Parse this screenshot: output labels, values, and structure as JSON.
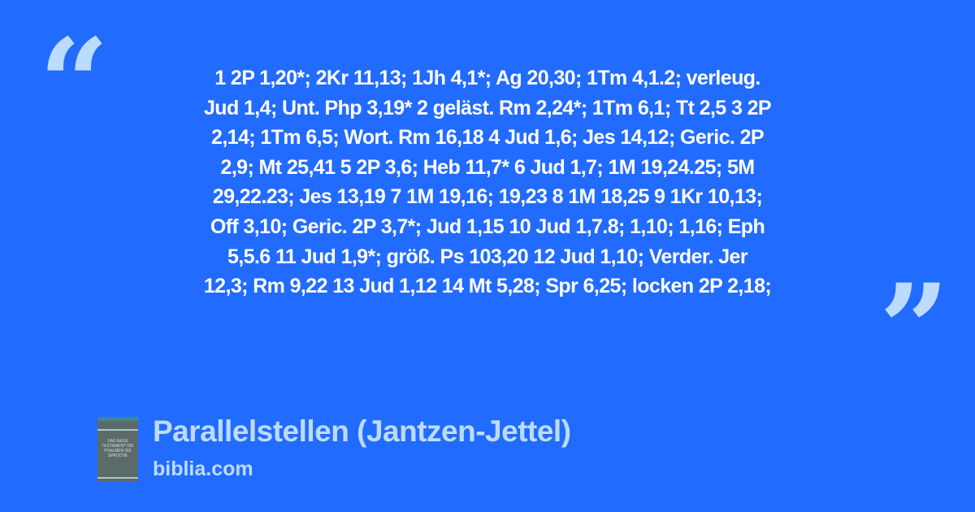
{
  "quote": {
    "lines": [
      "1 2P 1,20*; 2Kr 11,13; 1Jh 4,1*; Ag 20,30; 1Tm 4,1.2; verleug.",
      "Jud 1,4; Unt. Php 3,19* 2 geläst. Rm 2,24*; 1Tm 6,1; Tt 2,5 3 2P",
      "2,14; 1Tm 6,5; Wort. Rm 16,18 4 Jud 1,6; Jes 14,12; Geric. 2P",
      "2,9; Mt 25,41 5 2P 3,6; Heb 11,7* 6 Jud 1,7; 1M 19,24.25; 5M",
      "29,22.23; Jes 13,19 7 1M 19,16; 19,23 8 1M 18,25 9 1Kr 10,13;",
      "Off 3,10; Geric. 2P 3,7*; Jud 1,15 10 Jud 1,7.8; 1,10; 1,16; Eph",
      "5,5.6 11 Jud 1,9*; größ. Ps 103,20 12 Jud 1,10; Verder. Jer",
      "12,3; Rm 9,22 13 Jud 1,12 14 Mt 5,28; Spr 6,25; locken 2P 2,18;"
    ],
    "open_mark": "“",
    "close_mark": "”"
  },
  "book": {
    "cover_text": "DAS NEUE TESTAMENT DIE PSALMEN DIE SPRÜCHE",
    "authors": "HERBERT JANTZEN THOMAS JETTEL"
  },
  "footer": {
    "title": "Parallelstellen (Jantzen-Jettel)",
    "site": "biblia.com"
  },
  "colors": {
    "background": "#226bff",
    "accent": "#bcdcff",
    "text": "#ffffff"
  }
}
